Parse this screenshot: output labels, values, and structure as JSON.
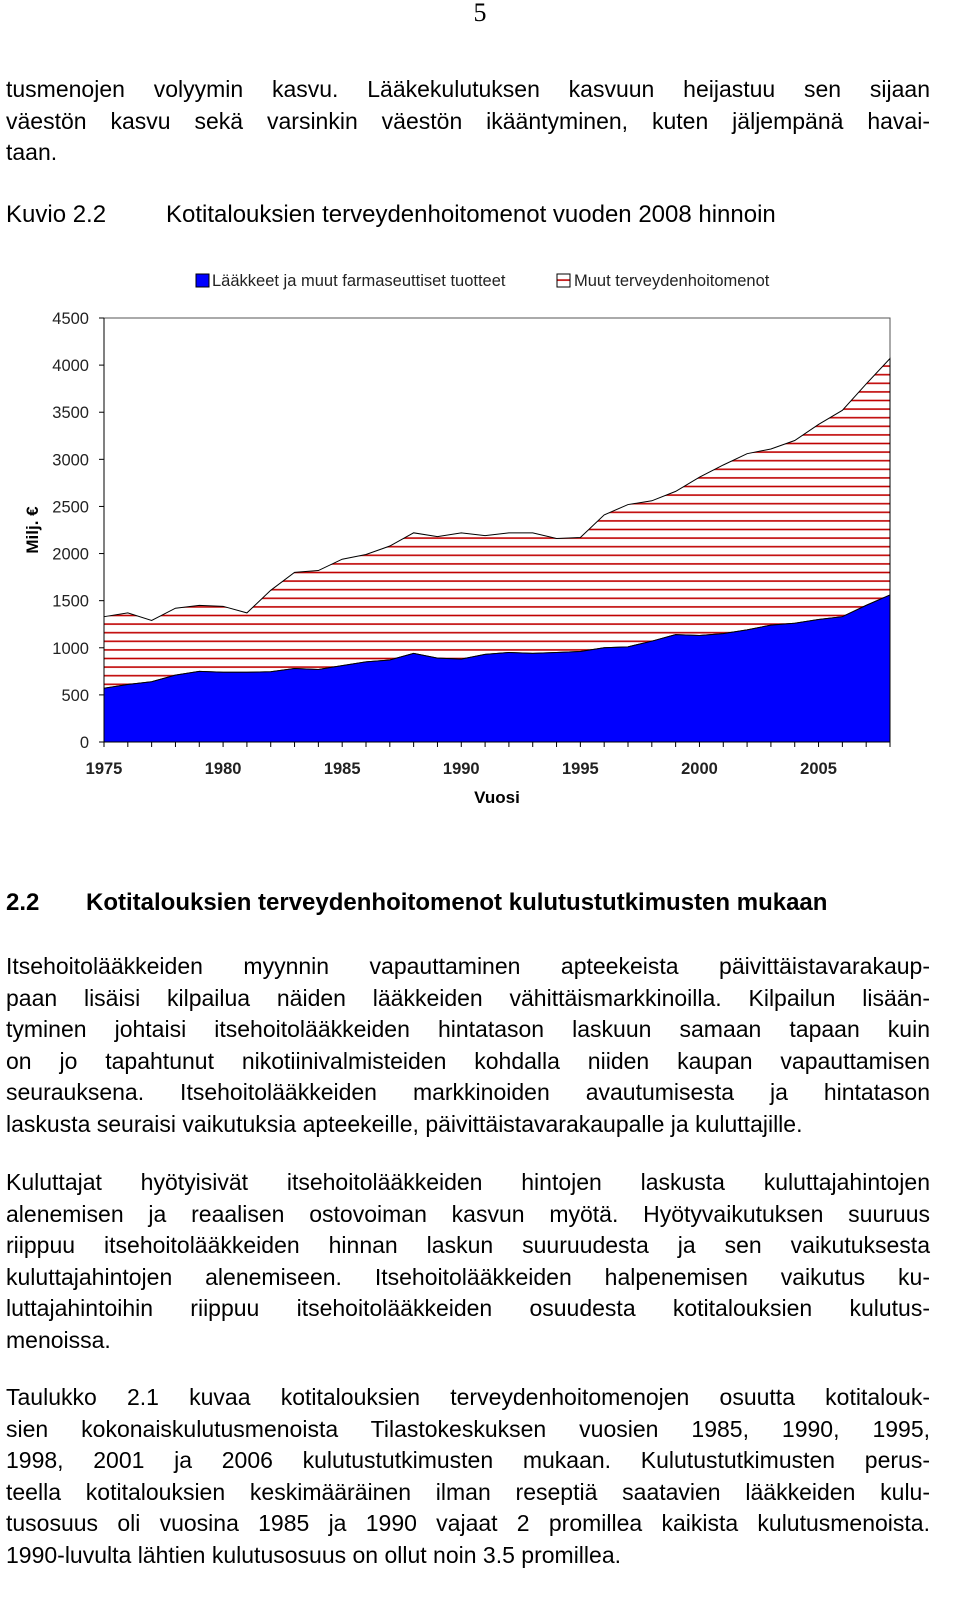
{
  "page_number": "5",
  "intro_lines": [
    "tusmenojen volyymin kasvu. Lääkekulutuksen kasvuun heijastuu sen sijaan",
    "väestön kasvu sekä varsinkin väestön ikääntyminen, kuten jäljempänä havai-",
    "taan."
  ],
  "figure": {
    "label": "Kuvio 2.2",
    "title": "Kotitalouksien terveydenhoitomenot vuoden 2008 hinnoin"
  },
  "chart_data": {
    "type": "area",
    "stacked": true,
    "title": "",
    "xlabel": "Vuosi",
    "ylabel": "Milj. €",
    "xlim": [
      1975,
      2008
    ],
    "ylim": [
      0,
      4500
    ],
    "x_ticks": [
      "1975",
      "1980",
      "1985",
      "1990",
      "1995",
      "2000",
      "2005"
    ],
    "y_ticks": [
      "0",
      "500",
      "1000",
      "1500",
      "2000",
      "2500",
      "3000",
      "3500",
      "4000",
      "4500"
    ],
    "legend_position": "top",
    "x": [
      1975,
      1976,
      1977,
      1978,
      1979,
      1980,
      1981,
      1982,
      1983,
      1984,
      1985,
      1986,
      1987,
      1988,
      1989,
      1990,
      1991,
      1992,
      1993,
      1994,
      1995,
      1996,
      1997,
      1998,
      1999,
      2000,
      2001,
      2002,
      2003,
      2004,
      2005,
      2006,
      2007,
      2008
    ],
    "series": [
      {
        "name": "Lääkkeet ja muut farmaseuttiset tuotteet",
        "color": "#0000ff",
        "pattern": "solid",
        "values": [
          570,
          610,
          640,
          710,
          750,
          740,
          740,
          745,
          780,
          770,
          810,
          850,
          870,
          940,
          890,
          880,
          930,
          950,
          940,
          950,
          960,
          1000,
          1010,
          1070,
          1140,
          1130,
          1150,
          1190,
          1240,
          1260,
          1300,
          1330,
          1450,
          1560
        ]
      },
      {
        "name": "Muut terveydenhoitomenot",
        "color": "#c00000",
        "pattern": "horizontal-stripes",
        "totals": [
          1330,
          1370,
          1290,
          1420,
          1450,
          1440,
          1370,
          1610,
          1800,
          1820,
          1940,
          1990,
          2080,
          2220,
          2180,
          2220,
          2190,
          2220,
          2220,
          2160,
          2170,
          2410,
          2520,
          2560,
          2660,
          2810,
          2940,
          3060,
          3110,
          3200,
          3370,
          3520,
          3800,
          4070
        ]
      }
    ]
  },
  "section": {
    "number": "2.2",
    "title": "Kotitalouksien terveydenhoitomenot kulutustutkimusten mukaan"
  },
  "para1_lines": [
    "Itsehoitolääkkeiden myynnin vapauttaminen apteekeista päivittäistavarakaup-",
    "paan lisäisi kilpailua näiden lääkkeiden vähittäismarkkinoilla. Kilpailun lisään-",
    "tyminen johtaisi itsehoitolääkkeiden hintatason laskuun samaan tapaan kuin",
    "on jo tapahtunut nikotiinivalmisteiden kohdalla niiden kaupan vapauttamisen",
    "seurauksena. Itsehoitolääkkeiden markkinoiden avautumisesta ja hintatason",
    "laskusta seuraisi vaikutuksia apteekeille, päivittäistavarakaupalle ja kuluttajille."
  ],
  "para2_lines": [
    "Kuluttajat hyötyisivät itsehoitolääkkeiden hintojen laskusta kuluttajahintojen",
    "alenemisen ja reaalisen ostovoiman kasvun myötä. Hyötyvaikutuksen suuruus",
    "riippuu itsehoitolääkkeiden hinnan laskun suuruudesta ja sen vaikutuksesta",
    "kuluttajahintojen alenemiseen. Itsehoitolääkkeiden halpenemisen vaikutus ku-",
    "luttajahintoihin riippuu itsehoitolääkkeiden osuudesta kotitalouksien kulutus-",
    "menoissa."
  ],
  "para3_lines": [
    "Taulukko 2.1 kuvaa kotitalouksien terveydenhoitomenojen osuutta kotitalouk-",
    "sien kokonaiskulutusmenoista Tilastokeskuksen vuosien 1985, 1990, 1995,",
    "1998, 2001 ja 2006 kulutustutkimusten mukaan. Kulutustutkimusten perus-",
    "teella kotitalouksien keskimääräinen ilman reseptiä saatavien lääkkeiden kulu-",
    "tusosuus oli vuosina 1985 ja 1990 vajaat 2 promillea kaikista kulutusmenoista.",
    "1990-luvulta lähtien kulutusosuus on ollut noin 3.5 promillea."
  ]
}
